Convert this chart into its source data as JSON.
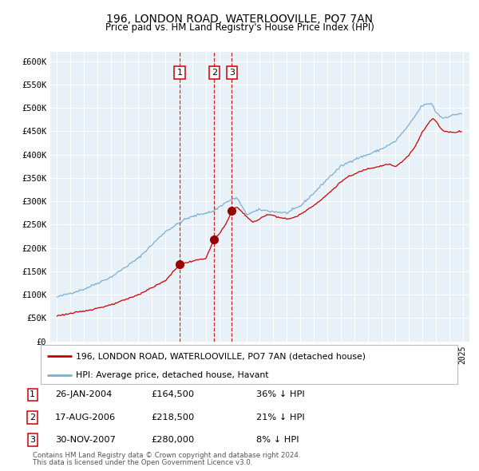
{
  "title": "196, LONDON ROAD, WATERLOOVILLE, PO7 7AN",
  "subtitle": "Price paid vs. HM Land Registry's House Price Index (HPI)",
  "legend_red": "196, LONDON ROAD, WATERLOOVILLE, PO7 7AN (detached house)",
  "legend_blue": "HPI: Average price, detached house, Havant",
  "transactions": [
    {
      "num": 1,
      "date_str": "26-JAN-2004",
      "date_x": 2004.07,
      "price": 164500,
      "pct": "36%",
      "dir": "↓"
    },
    {
      "num": 2,
      "date_str": "17-AUG-2006",
      "date_x": 2006.63,
      "price": 218500,
      "pct": "21%",
      "dir": "↓"
    },
    {
      "num": 3,
      "date_str": "30-NOV-2007",
      "date_x": 2007.92,
      "price": 280000,
      "pct": "8%",
      "dir": "↓"
    }
  ],
  "footer1": "Contains HM Land Registry data © Crown copyright and database right 2024.",
  "footer2": "This data is licensed under the Open Government Licence v3.0.",
  "ylim": [
    0,
    620000
  ],
  "xlim": [
    1994.5,
    2025.5
  ],
  "plot_bg": "#e8f1f8",
  "red_color": "#cc0000",
  "blue_color": "#7aafd4",
  "vline_color": "#cc0000",
  "grid_color": "#ffffff"
}
